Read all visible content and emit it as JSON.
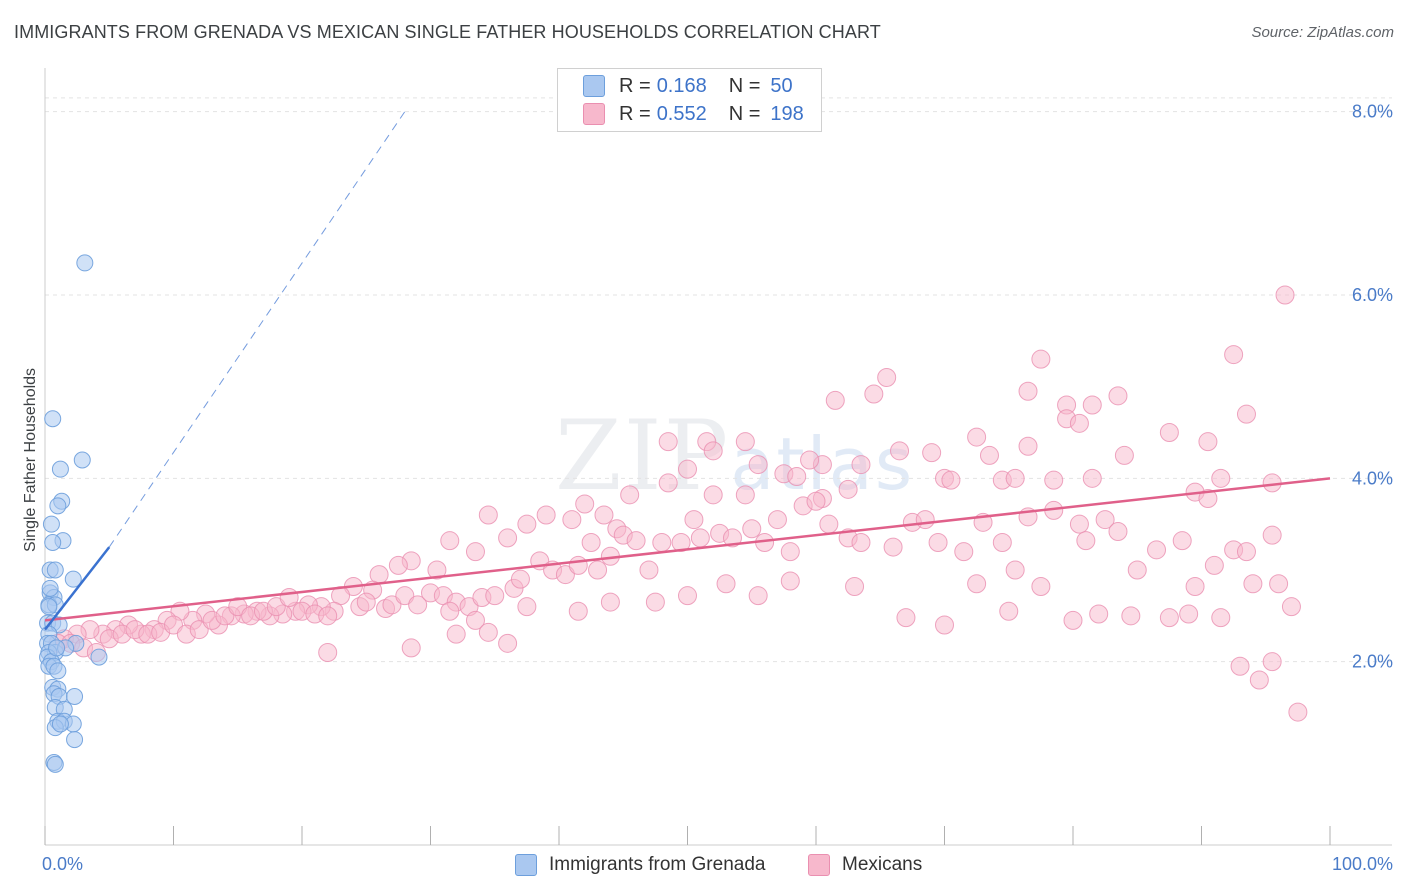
{
  "title": "IMMIGRANTS FROM GRENADA VS MEXICAN SINGLE FATHER HOUSEHOLDS CORRELATION CHART",
  "source_label": "Source: ZipAtlas.com",
  "watermark": {
    "part1": "ZIP",
    "part2": "atlas"
  },
  "colors": {
    "blue_fill": "#aac8f0",
    "blue_stroke": "#6d9fdc",
    "blue_line": "#3a72d0",
    "pink_fill": "#f7b8cc",
    "pink_stroke": "#ea8fb0",
    "pink_line": "#e0608a",
    "grid": "#e3e3e3",
    "axis_text": "#4a7bc8"
  },
  "legend": {
    "rows": [
      {
        "r_label": "R = ",
        "r_value": "0.168",
        "n_label": "N = ",
        "n_value": "50"
      },
      {
        "r_label": "R = ",
        "r_value": "0.552",
        "n_label": "N = ",
        "n_value": "198"
      }
    ]
  },
  "bottom_legend": [
    {
      "label": "Immigrants from Grenada"
    },
    {
      "label": "Mexicans"
    }
  ],
  "chart_data": {
    "type": "scatter",
    "title": "IMMIGRANTS FROM GRENADA VS MEXICAN SINGLE FATHER HOUSEHOLDS CORRELATION CHART",
    "xlabel": "",
    "ylabel": "Single Father Households",
    "xlim": [
      0,
      100
    ],
    "ylim": [
      0,
      8.4
    ],
    "x_tick_labels": [
      {
        "value": 0,
        "label": "0.0%"
      },
      {
        "value": 100,
        "label": "100.0%"
      }
    ],
    "y_tick_labels": [
      {
        "value": 2,
        "label": "2.0%"
      },
      {
        "value": 4,
        "label": "4.0%"
      },
      {
        "value": 6,
        "label": "6.0%"
      },
      {
        "value": 8,
        "label": "8.0%"
      }
    ],
    "x_minor_ticks": [
      0,
      10,
      20,
      30,
      40,
      50,
      60,
      70,
      80,
      90,
      100
    ],
    "series": [
      {
        "name": "Immigrants from Grenada",
        "R": 0.168,
        "N": 50,
        "trend": {
          "x0": 0,
          "y0": 2.35,
          "x1": 5,
          "y1": 3.25,
          "dashed_to": [
            28,
            8.0
          ]
        },
        "points": [
          [
            3.1,
            6.35
          ],
          [
            0.6,
            4.65
          ],
          [
            1.2,
            4.1
          ],
          [
            2.9,
            4.2
          ],
          [
            1.3,
            3.75
          ],
          [
            1.0,
            3.7
          ],
          [
            0.5,
            3.5
          ],
          [
            1.4,
            3.32
          ],
          [
            0.6,
            3.3
          ],
          [
            0.4,
            3.0
          ],
          [
            0.8,
            3.0
          ],
          [
            2.2,
            2.9
          ],
          [
            0.4,
            2.75
          ],
          [
            0.7,
            2.7
          ],
          [
            0.3,
            2.62
          ],
          [
            0.8,
            2.62
          ],
          [
            0.2,
            2.42
          ],
          [
            0.6,
            2.42
          ],
          [
            1.1,
            2.4
          ],
          [
            0.3,
            2.3
          ],
          [
            0.2,
            2.2
          ],
          [
            0.5,
            2.2
          ],
          [
            0.8,
            2.1
          ],
          [
            0.3,
            2.1
          ],
          [
            0.2,
            2.05
          ],
          [
            0.5,
            2.0
          ],
          [
            0.3,
            1.95
          ],
          [
            0.7,
            1.95
          ],
          [
            1.0,
            1.9
          ],
          [
            2.4,
            2.2
          ],
          [
            4.2,
            2.05
          ],
          [
            0.6,
            1.72
          ],
          [
            1.0,
            1.7
          ],
          [
            0.7,
            1.65
          ],
          [
            1.1,
            1.62
          ],
          [
            2.3,
            1.62
          ],
          [
            0.8,
            1.5
          ],
          [
            1.5,
            1.48
          ],
          [
            1.0,
            1.35
          ],
          [
            1.5,
            1.35
          ],
          [
            2.2,
            1.32
          ],
          [
            0.8,
            1.28
          ],
          [
            1.2,
            1.32
          ],
          [
            2.3,
            1.15
          ],
          [
            0.7,
            0.9
          ],
          [
            0.8,
            0.88
          ],
          [
            0.4,
            2.8
          ],
          [
            1.6,
            2.15
          ],
          [
            0.3,
            2.6
          ],
          [
            0.9,
            2.15
          ]
        ]
      },
      {
        "name": "Mexicans",
        "R": 0.552,
        "N": 198,
        "trend": {
          "x0": 0,
          "y0": 2.45,
          "x1": 100,
          "y1": 4.0
        },
        "points": [
          [
            96.5,
            6.0
          ],
          [
            92.5,
            5.35
          ],
          [
            77.5,
            5.3
          ],
          [
            65.5,
            5.1
          ],
          [
            64.5,
            4.92
          ],
          [
            76.5,
            4.95
          ],
          [
            93.5,
            4.7
          ],
          [
            83.5,
            4.9
          ],
          [
            81.5,
            4.8
          ],
          [
            79.5,
            4.8
          ],
          [
            61.5,
            4.85
          ],
          [
            79.5,
            4.65
          ],
          [
            80.5,
            4.6
          ],
          [
            87.5,
            4.5
          ],
          [
            90.5,
            4.4
          ],
          [
            76.5,
            4.35
          ],
          [
            72.5,
            4.45
          ],
          [
            73.5,
            4.25
          ],
          [
            66.5,
            4.3
          ],
          [
            69.0,
            4.28
          ],
          [
            63.5,
            4.15
          ],
          [
            60.5,
            4.15
          ],
          [
            59.5,
            4.2
          ],
          [
            51.5,
            4.4
          ],
          [
            54.5,
            4.4
          ],
          [
            55.5,
            4.15
          ],
          [
            57.5,
            4.05
          ],
          [
            48.5,
            4.4
          ],
          [
            52.0,
            4.3
          ],
          [
            50.0,
            4.1
          ],
          [
            58.5,
            4.02
          ],
          [
            70.0,
            4.0
          ],
          [
            70.5,
            3.98
          ],
          [
            74.5,
            3.98
          ],
          [
            75.5,
            4.0
          ],
          [
            78.5,
            3.98
          ],
          [
            81.5,
            4.0
          ],
          [
            84.0,
            4.25
          ],
          [
            91.5,
            4.0
          ],
          [
            95.5,
            3.95
          ],
          [
            89.5,
            3.85
          ],
          [
            90.5,
            3.78
          ],
          [
            62.5,
            3.88
          ],
          [
            60.5,
            3.78
          ],
          [
            54.5,
            3.82
          ],
          [
            52.0,
            3.82
          ],
          [
            48.5,
            3.95
          ],
          [
            45.5,
            3.82
          ],
          [
            43.5,
            3.6
          ],
          [
            42.0,
            3.72
          ],
          [
            44.5,
            3.45
          ],
          [
            41.0,
            3.55
          ],
          [
            39.0,
            3.6
          ],
          [
            37.5,
            3.5
          ],
          [
            36.0,
            3.35
          ],
          [
            34.5,
            3.6
          ],
          [
            31.5,
            3.32
          ],
          [
            33.5,
            3.2
          ],
          [
            30.5,
            3.0
          ],
          [
            28.5,
            3.1
          ],
          [
            27.5,
            3.05
          ],
          [
            26.0,
            2.95
          ],
          [
            25.5,
            2.78
          ],
          [
            24.0,
            2.82
          ],
          [
            23.0,
            2.72
          ],
          [
            22.5,
            2.55
          ],
          [
            21.5,
            2.6
          ],
          [
            20.5,
            2.62
          ],
          [
            19.5,
            2.55
          ],
          [
            18.5,
            2.52
          ],
          [
            17.5,
            2.5
          ],
          [
            16.5,
            2.55
          ],
          [
            15.5,
            2.52
          ],
          [
            14.5,
            2.5
          ],
          [
            13.5,
            2.4
          ],
          [
            12.5,
            2.52
          ],
          [
            11.5,
            2.45
          ],
          [
            10.5,
            2.55
          ],
          [
            9.5,
            2.45
          ],
          [
            8.5,
            2.35
          ],
          [
            7.5,
            2.3
          ],
          [
            6.5,
            2.4
          ],
          [
            5.5,
            2.35
          ],
          [
            4.5,
            2.3
          ],
          [
            3.5,
            2.35
          ],
          [
            2.5,
            2.3
          ],
          [
            1.5,
            2.25
          ],
          [
            1.0,
            2.2
          ],
          [
            2.0,
            2.2
          ],
          [
            3.0,
            2.15
          ],
          [
            4.0,
            2.1
          ],
          [
            5.0,
            2.25
          ],
          [
            6.0,
            2.3
          ],
          [
            7.0,
            2.35
          ],
          [
            8.0,
            2.3
          ],
          [
            9.0,
            2.32
          ],
          [
            10.0,
            2.4
          ],
          [
            11.0,
            2.3
          ],
          [
            12.0,
            2.35
          ],
          [
            13.0,
            2.45
          ],
          [
            14.0,
            2.5
          ],
          [
            15.0,
            2.6
          ],
          [
            16.0,
            2.5
          ],
          [
            17.0,
            2.55
          ],
          [
            18.0,
            2.6
          ],
          [
            19.0,
            2.7
          ],
          [
            20.0,
            2.55
          ],
          [
            21.0,
            2.52
          ],
          [
            22.0,
            2.5
          ],
          [
            24.5,
            2.6
          ],
          [
            25.0,
            2.65
          ],
          [
            26.5,
            2.58
          ],
          [
            27.0,
            2.62
          ],
          [
            28.0,
            2.72
          ],
          [
            29.0,
            2.62
          ],
          [
            30.0,
            2.75
          ],
          [
            31.0,
            2.72
          ],
          [
            32.0,
            2.65
          ],
          [
            33.0,
            2.6
          ],
          [
            34.0,
            2.7
          ],
          [
            35.0,
            2.72
          ],
          [
            36.5,
            2.8
          ],
          [
            37.0,
            2.9
          ],
          [
            38.5,
            3.1
          ],
          [
            39.5,
            3.0
          ],
          [
            40.5,
            2.95
          ],
          [
            41.5,
            3.05
          ],
          [
            42.5,
            3.3
          ],
          [
            43.0,
            3.0
          ],
          [
            44.0,
            3.15
          ],
          [
            45.0,
            3.38
          ],
          [
            46.0,
            3.32
          ],
          [
            47.0,
            3.0
          ],
          [
            48.0,
            3.3
          ],
          [
            49.5,
            3.3
          ],
          [
            50.5,
            3.55
          ],
          [
            51.0,
            3.35
          ],
          [
            52.5,
            3.4
          ],
          [
            53.5,
            3.35
          ],
          [
            55.0,
            3.45
          ],
          [
            56.0,
            3.3
          ],
          [
            57.0,
            3.55
          ],
          [
            58.0,
            3.2
          ],
          [
            59.0,
            3.7
          ],
          [
            60.0,
            3.75
          ],
          [
            61.0,
            3.5
          ],
          [
            62.5,
            3.35
          ],
          [
            63.5,
            3.3
          ],
          [
            66.0,
            3.25
          ],
          [
            67.5,
            3.52
          ],
          [
            68.5,
            3.55
          ],
          [
            69.5,
            3.3
          ],
          [
            71.5,
            3.2
          ],
          [
            73.0,
            3.52
          ],
          [
            74.5,
            3.3
          ],
          [
            75.5,
            3.0
          ],
          [
            76.5,
            3.58
          ],
          [
            78.5,
            3.65
          ],
          [
            80.5,
            3.5
          ],
          [
            81.0,
            3.32
          ],
          [
            82.5,
            3.55
          ],
          [
            83.5,
            3.42
          ],
          [
            85.0,
            3.0
          ],
          [
            86.5,
            3.22
          ],
          [
            88.5,
            3.32
          ],
          [
            89.5,
            2.82
          ],
          [
            91.0,
            3.05
          ],
          [
            92.5,
            3.22
          ],
          [
            93.5,
            3.2
          ],
          [
            94.0,
            2.85
          ],
          [
            95.5,
            3.38
          ],
          [
            96.0,
            2.85
          ],
          [
            97.0,
            2.6
          ],
          [
            31.5,
            2.55
          ],
          [
            33.5,
            2.45
          ],
          [
            34.5,
            2.32
          ],
          [
            36.0,
            2.2
          ],
          [
            37.5,
            2.6
          ],
          [
            41.5,
            2.55
          ],
          [
            44.0,
            2.65
          ],
          [
            47.5,
            2.65
          ],
          [
            50.0,
            2.72
          ],
          [
            53.0,
            2.85
          ],
          [
            55.5,
            2.72
          ],
          [
            58.0,
            2.88
          ],
          [
            63.0,
            2.82
          ],
          [
            67.0,
            2.48
          ],
          [
            70.0,
            2.4
          ],
          [
            72.5,
            2.85
          ],
          [
            75.0,
            2.55
          ],
          [
            77.5,
            2.82
          ],
          [
            80.0,
            2.45
          ],
          [
            82.0,
            2.52
          ],
          [
            84.5,
            2.5
          ],
          [
            87.5,
            2.48
          ],
          [
            89.0,
            2.52
          ],
          [
            91.5,
            2.48
          ],
          [
            93.0,
            1.95
          ],
          [
            94.5,
            1.8
          ],
          [
            95.5,
            2.0
          ],
          [
            97.5,
            1.45
          ],
          [
            22.0,
            2.1
          ],
          [
            28.5,
            2.15
          ],
          [
            32.0,
            2.3
          ]
        ]
      }
    ]
  }
}
